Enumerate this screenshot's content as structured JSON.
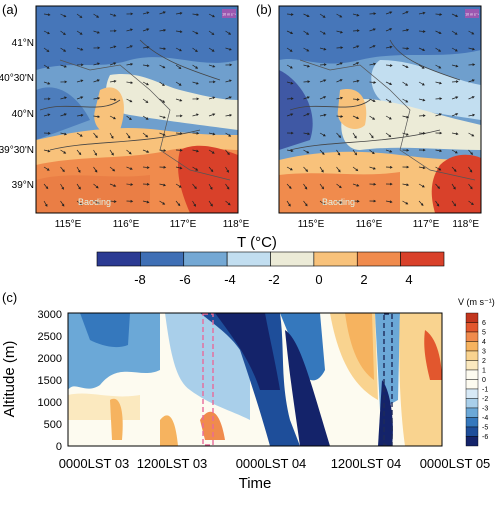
{
  "panel_a": {
    "label": "(a)",
    "lat_ticks": [
      "41°N",
      "40°30'N",
      "40°N",
      "39°30'N",
      "39°N"
    ],
    "lon_ticks": [
      "115°E",
      "116°E",
      "117°E",
      "118°E"
    ],
    "city_label": "Baoding",
    "vector_ref": "10 m s⁻¹"
  },
  "panel_b": {
    "label": "(b)",
    "lon_ticks": [
      "115°E",
      "116°E",
      "117°E",
      "118°E"
    ],
    "city_label": "Baoding",
    "vector_ref": "10 m s⁻¹"
  },
  "colorbar": {
    "title": "T (°C)",
    "tick_labels": [
      "-8",
      "-6",
      "-4",
      "-2",
      "0",
      "2",
      "4"
    ],
    "colors": [
      "#2b3a93",
      "#3f6fb5",
      "#74a8d4",
      "#c2def0",
      "#ecebd7",
      "#f8c27b",
      "#f08b4d",
      "#d9412a"
    ]
  },
  "panel_c": {
    "label": "(c)",
    "ylabel": "Altitude (m)",
    "xlabel": "Time",
    "y_ticks": [
      "0",
      "500",
      "1000",
      "1500",
      "2000",
      "2500",
      "3000"
    ],
    "x_ticks": [
      "0000LST 03",
      "1200LST 03",
      "0000LST 04",
      "1200LST 04",
      "0000LST 05"
    ],
    "cbar_title": "V (m s⁻¹)",
    "cbar_ticks": [
      "6",
      "5",
      "4",
      "3",
      "2",
      "1",
      "0",
      "-1",
      "-2",
      "-3",
      "-4",
      "-5",
      "-6"
    ],
    "cbar_colors": [
      "#c2361e",
      "#e2572e",
      "#f08b4d",
      "#f6b35f",
      "#f9d38f",
      "#fbe9bf",
      "#fdfbf0",
      "#fdfbf0",
      "#d7e9f6",
      "#a9cfea",
      "#6ba8d7",
      "#3578bd",
      "#1e4e9a",
      "#14236a"
    ]
  },
  "chart_data": [
    {
      "type": "heatmap",
      "title": "(c)",
      "xlabel": "Time",
      "ylabel": "Altitude (m)",
      "x": [
        "0000LST 03",
        "1200LST 03",
        "0000LST 04",
        "1200LST 04",
        "0000LST 05"
      ],
      "ylim": [
        0,
        3000
      ],
      "colorbar": "V (m s-1)",
      "clim": [
        -6,
        6
      ],
      "highlight_boxes": [
        {
          "color": "pink",
          "time_hours": [
            16,
            17.5
          ],
          "altitude_range": [
            0,
            3000
          ]
        },
        {
          "color": "navy",
          "time_hours": [
            39.5,
            40.5
          ],
          "altitude_range": [
            0,
            3000
          ]
        }
      ]
    }
  ]
}
